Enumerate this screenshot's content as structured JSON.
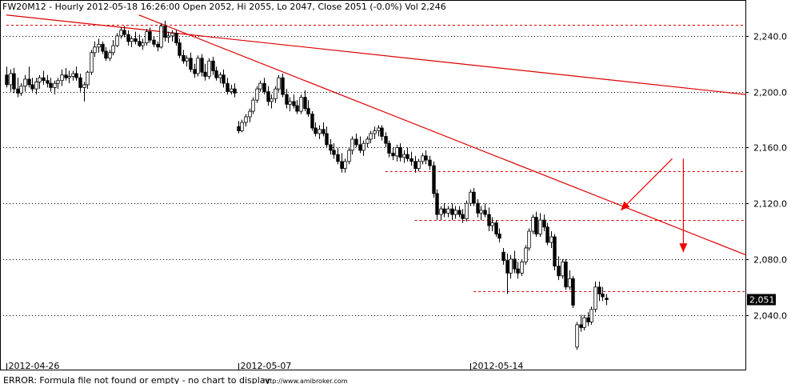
{
  "header": {
    "title": "FW20M12 - Hourly 2012-05-18 16:26:00 Open 2052, Hi 2055, Lo 2047, Close 2051 (-0.0%) Vol 2,246"
  },
  "footer": {
    "error": "ERROR: Formula file not found or empty - no chart to display",
    "credit": "http://www.amibroker.com"
  },
  "colors": {
    "bull_body": "#ffffff",
    "bear_body": "#000000",
    "grid": "#000000",
    "trendline": "#dd0000",
    "hline": "#dd0000",
    "arrow": "#ee0000",
    "last_label_bg": "#000000"
  },
  "chart_data": {
    "type": "candlestick",
    "symbol": "FW20M12",
    "interval": "Hourly",
    "ylim": [
      2010,
      2260
    ],
    "yticks": [
      {
        "value": 2040,
        "label": "2,040.0"
      },
      {
        "value": 2080,
        "label": "2,080.0"
      },
      {
        "value": 2120,
        "label": "2,120.0"
      },
      {
        "value": 2160,
        "label": "2,160.0"
      },
      {
        "value": 2200,
        "label": "2,200.0"
      },
      {
        "value": 2240,
        "label": "2,240.0"
      }
    ],
    "xticks": [
      {
        "index": 0,
        "label": "2012-04-26"
      },
      {
        "index": 63,
        "label": "2012-05-07"
      },
      {
        "index": 126,
        "label": "2012-05-14"
      }
    ],
    "last_value": {
      "value": 2051,
      "label": "2,051"
    },
    "candles": [
      [
        2212,
        2218,
        2203,
        2205
      ],
      [
        2205,
        2216,
        2200,
        2213
      ],
      [
        2213,
        2217,
        2199,
        2202
      ],
      [
        2202,
        2210,
        2196,
        2199
      ],
      [
        2199,
        2206,
        2197,
        2204
      ],
      [
        2204,
        2212,
        2200,
        2209
      ],
      [
        2209,
        2218,
        2203,
        2205
      ],
      [
        2205,
        2210,
        2200,
        2202
      ],
      [
        2202,
        2210,
        2198,
        2207
      ],
      [
        2207,
        2212,
        2202,
        2210
      ],
      [
        2210,
        2215,
        2205,
        2208
      ],
      [
        2208,
        2212,
        2203,
        2206
      ],
      [
        2206,
        2210,
        2200,
        2203
      ],
      [
        2203,
        2208,
        2198,
        2206
      ],
      [
        2206,
        2210,
        2202,
        2208
      ],
      [
        2208,
        2216,
        2204,
        2212
      ],
      [
        2212,
        2217,
        2208,
        2210
      ],
      [
        2210,
        2215,
        2206,
        2211
      ],
      [
        2211,
        2215,
        2208,
        2213
      ],
      [
        2213,
        2218,
        2208,
        2210
      ],
      [
        2210,
        2213,
        2200,
        2203
      ],
      [
        2203,
        2207,
        2193,
        2205
      ],
      [
        2205,
        2215,
        2202,
        2214
      ],
      [
        2214,
        2230,
        2212,
        2228
      ],
      [
        2228,
        2236,
        2225,
        2232
      ],
      [
        2232,
        2238,
        2228,
        2234
      ],
      [
        2234,
        2236,
        2227,
        2229
      ],
      [
        2229,
        2232,
        2222,
        2224
      ],
      [
        2224,
        2230,
        2222,
        2228
      ],
      [
        2228,
        2237,
        2226,
        2233
      ],
      [
        2233,
        2242,
        2232,
        2240
      ],
      [
        2240,
        2246,
        2238,
        2244
      ],
      [
        2244,
        2247,
        2239,
        2241
      ],
      [
        2241,
        2244,
        2233,
        2236
      ],
      [
        2236,
        2240,
        2232,
        2238
      ],
      [
        2238,
        2243,
        2234,
        2236
      ],
      [
        2236,
        2241,
        2232,
        2233
      ],
      [
        2233,
        2238,
        2230,
        2235
      ],
      [
        2235,
        2245,
        2233,
        2243
      ],
      [
        2243,
        2246,
        2235,
        2237
      ],
      [
        2237,
        2240,
        2232,
        2234
      ],
      [
        2234,
        2236,
        2229,
        2232
      ],
      [
        2232,
        2249,
        2231,
        2247
      ],
      [
        2247,
        2251,
        2236,
        2239
      ],
      [
        2239,
        2243,
        2235,
        2240
      ],
      [
        2240,
        2244,
        2236,
        2242
      ],
      [
        2242,
        2244,
        2233,
        2235
      ],
      [
        2235,
        2238,
        2224,
        2226
      ],
      [
        2226,
        2230,
        2220,
        2222
      ],
      [
        2222,
        2226,
        2218,
        2224
      ],
      [
        2224,
        2228,
        2214,
        2216
      ],
      [
        2216,
        2220,
        2210,
        2213
      ],
      [
        2213,
        2226,
        2211,
        2224
      ],
      [
        2224,
        2227,
        2211,
        2214
      ],
      [
        2214,
        2220,
        2208,
        2211
      ],
      [
        2211,
        2224,
        2209,
        2222
      ],
      [
        2222,
        2225,
        2212,
        2215
      ],
      [
        2215,
        2218,
        2208,
        2210
      ],
      [
        2210,
        2214,
        2206,
        2212
      ],
      [
        2212,
        2216,
        2203,
        2206
      ],
      [
        2206,
        2210,
        2198,
        2200
      ],
      [
        2200,
        2205,
        2198,
        2202
      ],
      [
        2202,
        2206,
        2196,
        2199
      ],
      [
        2175,
        2179,
        2170,
        2172
      ],
      [
        2172,
        2180,
        2171,
        2178
      ],
      [
        2178,
        2184,
        2175,
        2182
      ],
      [
        2182,
        2188,
        2178,
        2186
      ],
      [
        2186,
        2196,
        2184,
        2194
      ],
      [
        2194,
        2204,
        2192,
        2202
      ],
      [
        2202,
        2208,
        2200,
        2206
      ],
      [
        2206,
        2210,
        2198,
        2200
      ],
      [
        2200,
        2204,
        2190,
        2193
      ],
      [
        2193,
        2198,
        2188,
        2195
      ],
      [
        2195,
        2204,
        2192,
        2202
      ],
      [
        2202,
        2212,
        2200,
        2210
      ],
      [
        2210,
        2213,
        2196,
        2198
      ],
      [
        2198,
        2202,
        2188,
        2191
      ],
      [
        2191,
        2196,
        2186,
        2193
      ],
      [
        2193,
        2198,
        2188,
        2190
      ],
      [
        2190,
        2194,
        2184,
        2186
      ],
      [
        2186,
        2198,
        2184,
        2196
      ],
      [
        2196,
        2201,
        2186,
        2188
      ],
      [
        2188,
        2194,
        2182,
        2184
      ],
      [
        2184,
        2186,
        2172,
        2174
      ],
      [
        2174,
        2178,
        2168,
        2170
      ],
      [
        2170,
        2176,
        2166,
        2173
      ],
      [
        2173,
        2178,
        2168,
        2170
      ],
      [
        2170,
        2175,
        2160,
        2162
      ],
      [
        2162,
        2166,
        2155,
        2158
      ],
      [
        2158,
        2163,
        2152,
        2155
      ],
      [
        2155,
        2160,
        2148,
        2150
      ],
      [
        2150,
        2156,
        2142,
        2145
      ],
      [
        2145,
        2152,
        2142,
        2150
      ],
      [
        2150,
        2160,
        2148,
        2158
      ],
      [
        2158,
        2168,
        2155,
        2166
      ],
      [
        2166,
        2170,
        2160,
        2162
      ],
      [
        2162,
        2168,
        2156,
        2158
      ],
      [
        2158,
        2165,
        2154,
        2163
      ],
      [
        2163,
        2168,
        2160,
        2166
      ],
      [
        2166,
        2172,
        2163,
        2170
      ],
      [
        2170,
        2175,
        2166,
        2172
      ],
      [
        2172,
        2176,
        2168,
        2174
      ],
      [
        2174,
        2176,
        2165,
        2168
      ],
      [
        2168,
        2171,
        2160,
        2163
      ],
      [
        2163,
        2165,
        2153,
        2156
      ],
      [
        2156,
        2160,
        2151,
        2154
      ],
      [
        2154,
        2162,
        2150,
        2160
      ],
      [
        2160,
        2163,
        2150,
        2153
      ],
      [
        2153,
        2158,
        2149,
        2155
      ],
      [
        2155,
        2160,
        2150,
        2152
      ],
      [
        2152,
        2157,
        2147,
        2150
      ],
      [
        2150,
        2154,
        2142,
        2145
      ],
      [
        2145,
        2152,
        2143,
        2150
      ],
      [
        2150,
        2156,
        2148,
        2154
      ],
      [
        2154,
        2158,
        2148,
        2151
      ],
      [
        2151,
        2154,
        2144,
        2147
      ],
      [
        2147,
        2150,
        2124,
        2127
      ],
      [
        2127,
        2130,
        2108,
        2112
      ],
      [
        2112,
        2118,
        2108,
        2116
      ],
      [
        2116,
        2120,
        2110,
        2113
      ],
      [
        2113,
        2118,
        2110,
        2116
      ],
      [
        2116,
        2120,
        2108,
        2112
      ],
      [
        2112,
        2118,
        2109,
        2115
      ],
      [
        2115,
        2118,
        2110,
        2112
      ],
      [
        2112,
        2116,
        2106,
        2109
      ],
      [
        2109,
        2122,
        2107,
        2120
      ],
      [
        2120,
        2130,
        2118,
        2128
      ],
      [
        2128,
        2131,
        2118,
        2120
      ],
      [
        2120,
        2123,
        2110,
        2113
      ],
      [
        2113,
        2118,
        2108,
        2115
      ],
      [
        2115,
        2120,
        2110,
        2112
      ],
      [
        2112,
        2117,
        2100,
        2104
      ],
      [
        2104,
        2110,
        2100,
        2106
      ],
      [
        2106,
        2108,
        2096,
        2098
      ],
      [
        2098,
        2102,
        2092,
        2095
      ],
      [
        2085,
        2088,
        2076,
        2079
      ],
      [
        2079,
        2084,
        2055,
        2070
      ],
      [
        2070,
        2083,
        2066,
        2080
      ],
      [
        2080,
        2086,
        2070,
        2073
      ],
      [
        2073,
        2078,
        2066,
        2070
      ],
      [
        2070,
        2080,
        2068,
        2078
      ],
      [
        2078,
        2090,
        2076,
        2088
      ],
      [
        2088,
        2102,
        2086,
        2100
      ],
      [
        2100,
        2112,
        2098,
        2110
      ],
      [
        2110,
        2114,
        2096,
        2098
      ],
      [
        2098,
        2113,
        2096,
        2108
      ],
      [
        2108,
        2112,
        2100,
        2103
      ],
      [
        2103,
        2106,
        2090,
        2092
      ],
      [
        2092,
        2100,
        2088,
        2096
      ],
      [
        2096,
        2098,
        2072,
        2075
      ],
      [
        2075,
        2082,
        2065,
        2068
      ],
      [
        2068,
        2080,
        2066,
        2078
      ],
      [
        2078,
        2080,
        2058,
        2060
      ],
      [
        2060,
        2072,
        2058,
        2066
      ],
      [
        2066,
        2068,
        2045,
        2047
      ],
      [
        2017,
        2035,
        2015,
        2033
      ],
      [
        2033,
        2040,
        2028,
        2031
      ],
      [
        2031,
        2040,
        2029,
        2038
      ],
      [
        2038,
        2042,
        2032,
        2035
      ],
      [
        2035,
        2046,
        2033,
        2044
      ],
      [
        2044,
        2064,
        2042,
        2060
      ],
      [
        2060,
        2064,
        2050,
        2055
      ],
      [
        2055,
        2060,
        2050,
        2053
      ],
      [
        2052,
        2055,
        2047,
        2051
      ]
    ],
    "hlines": [
      {
        "value": 2248,
        "from_index": 0,
        "to_index": 201
      },
      {
        "value": 2143,
        "from_index": 103,
        "to_index": 201
      },
      {
        "value": 2108,
        "from_index": 111,
        "to_index": 201
      },
      {
        "value": 2057,
        "from_index": 127,
        "to_index": 201
      }
    ],
    "trendlines": [
      {
        "from": [
          0,
          2255
        ],
        "to": [
          201,
          2198
        ]
      },
      {
        "from": [
          36,
          2255
        ],
        "to": [
          201,
          2083
        ]
      }
    ],
    "arrows": [
      {
        "from": [
          181,
          2152
        ],
        "to": [
          167,
          2115
        ]
      },
      {
        "from": [
          184,
          2152
        ],
        "to": [
          184,
          2085
        ]
      }
    ]
  }
}
